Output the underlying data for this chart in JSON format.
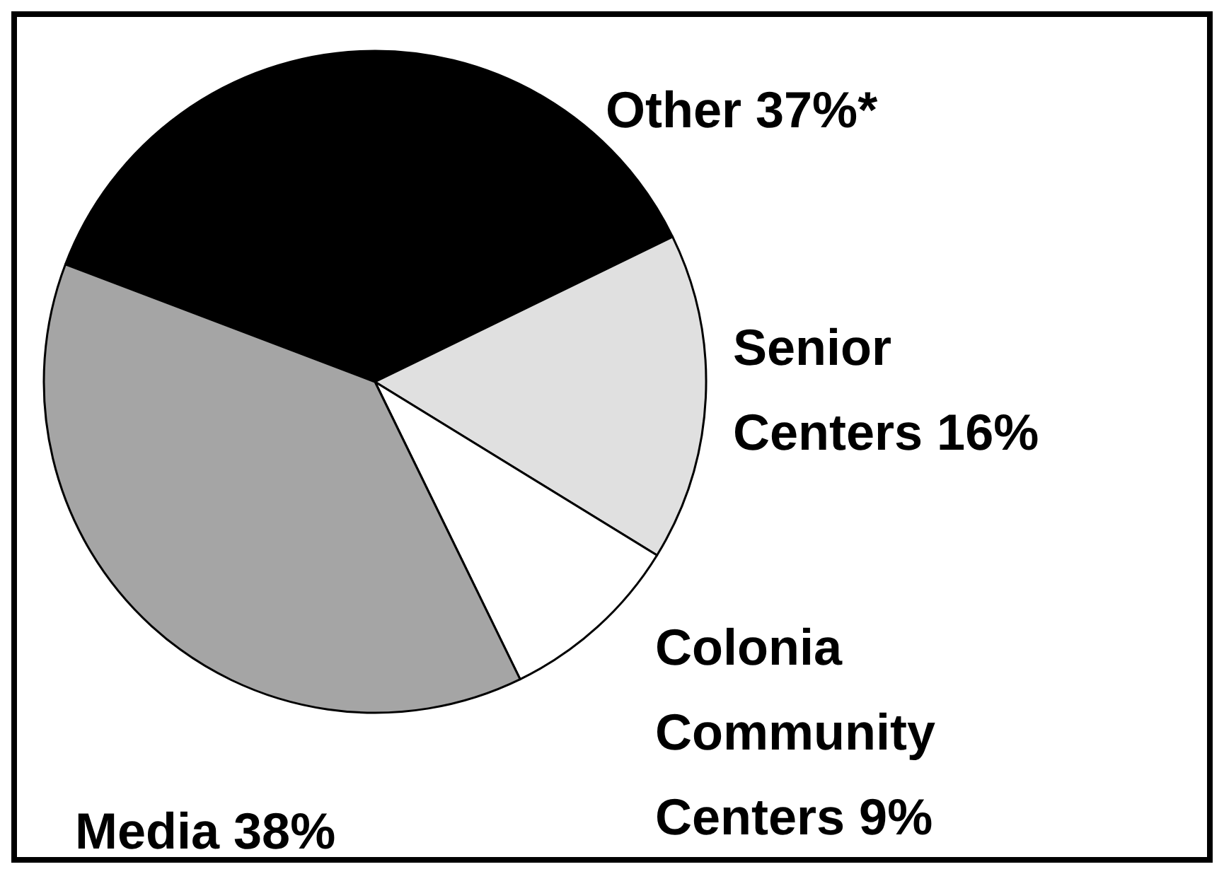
{
  "chart_data": {
    "type": "pie",
    "categories": [
      "Other",
      "Senior Centers",
      "Colonia Community Centers",
      "Media"
    ],
    "values": [
      37,
      16,
      9,
      38
    ],
    "value_labels": [
      "37%*",
      "16%",
      "9%",
      "38%"
    ],
    "colors": [
      "#000000",
      "#e0e0e0",
      "#ffffff",
      "#a5a5a5"
    ]
  }
}
